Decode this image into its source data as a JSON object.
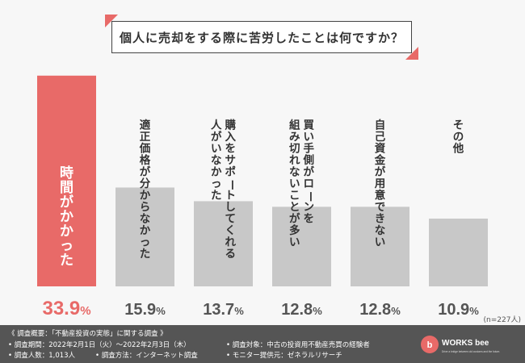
{
  "chart_data": {
    "type": "bar",
    "title": "個人に売却をする際に苦労したことは何ですか？",
    "categories": [
      "時間がかかった",
      "適正価格が分からなかった",
      "購入をサポートしてくれる人がいなかった",
      "買い手側がローンを組み切れないことが多い",
      "自己資金が用意できない",
      "その他"
    ],
    "label_columns": [
      [
        "時間がかかった"
      ],
      [
        "適正価格が分からなかった"
      ],
      [
        "購入をサポートしてくれる",
        "人がいなかった"
      ],
      [
        "買い手側がローンを",
        "組み切れないことが多い"
      ],
      [
        "自己資金が用意できない"
      ],
      [
        "その他"
      ]
    ],
    "values": [
      33.9,
      15.9,
      13.7,
      12.8,
      12.8,
      10.9
    ],
    "value_labels": [
      {
        "num": "33.9",
        "unit": "%"
      },
      {
        "num": "15.9",
        "unit": "%"
      },
      {
        "num": "13.7",
        "unit": "%"
      },
      {
        "num": "12.8",
        "unit": "%"
      },
      {
        "num": "12.8",
        "unit": "%"
      },
      {
        "num": "10.9",
        "unit": "%"
      }
    ],
    "highlight_index": 0,
    "ylim": [
      0,
      34
    ],
    "grid": false,
    "sample_note": "(n=227人)"
  },
  "colors": {
    "highlight": "#e86a68",
    "bar": "#c8c8c8",
    "highlight_value": "#e86a68",
    "value": "#555555",
    "label_on_highlight": "#ffffff",
    "label": "#333333"
  },
  "footer": {
    "line1": "《 調査概要：「不動産投資の実態」に関する調査 》",
    "period": "• 調査期間：2022年2月1日（火）〜2022年2月3日（木）",
    "count": "• 調査人数：1,013人",
    "method": "• 調査方法：インターネット調査",
    "target": "• 調査対象：中古の投資用不動産売買の経験者",
    "provider": "• モニター提供元：ゼネラルリサーチ"
  },
  "logo": {
    "text": "WORKS bee",
    "tagline": "Drive a bridge between old customs and the future."
  }
}
